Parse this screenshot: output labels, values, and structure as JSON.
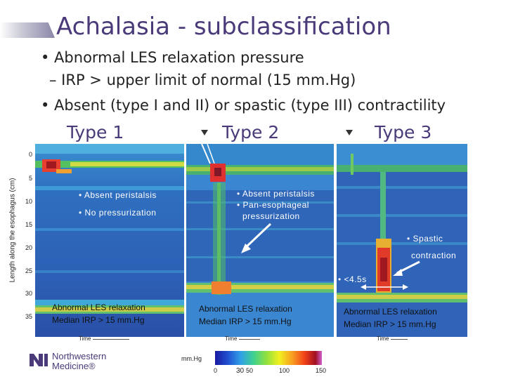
{
  "title": "Achalasia - subclassification",
  "bullets": {
    "b1": "• Abnormal LES relaxation pressure",
    "b1_sub": "– IRP > upper limit of normal (15 mm.Hg)",
    "b2": "• Absent (type I and II) or spastic (type III) contractility"
  },
  "types": [
    "Type 1",
    "Type 2",
    "Type 3"
  ],
  "y_axis": {
    "label": "Length along the esophagus (cm)",
    "ticks": [
      "0",
      "5",
      "10",
      "15",
      "20",
      "25",
      "30",
      "35"
    ]
  },
  "panels": {
    "p1": {
      "ann1": "• Absent peristalsis",
      "ann2": "• No pressurization",
      "les1": "Abnormal LES relaxation",
      "les2": "Median IRP > 15 mm.Hg",
      "time": "Time"
    },
    "p2": {
      "ann1": "• Absent peristalsis",
      "ann2": "• Pan-esophageal",
      "ann3": "pressurization",
      "les1": "Abnormal LES relaxation",
      "les2": "Median IRP > 15 mm.Hg",
      "time": "Time"
    },
    "p3": {
      "ann1": "• Spastic",
      "ann2": "contraction",
      "dur": "• <4.5s",
      "les1": "Abnormal LES relaxation",
      "les2": "Median IRP > 15 mm.Hg",
      "time": "Time"
    }
  },
  "colorbar": {
    "label": "mm.Hg",
    "ticks": [
      "0",
      "30",
      "50",
      "100",
      "150"
    ]
  },
  "logo": {
    "line1": "Northwestern",
    "line2": "Medicine®"
  },
  "colors": {
    "title": "#4a3a7a",
    "panel_blue": "#2f5fb8"
  }
}
